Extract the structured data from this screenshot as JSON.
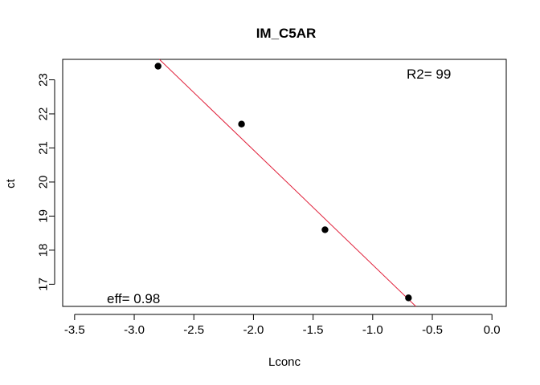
{
  "chart_data": {
    "type": "scatter",
    "title": "IM_C5AR",
    "xlabel": "Lconc",
    "ylabel": "ct",
    "xlim": [
      -3.6,
      0.12
    ],
    "ylim": [
      16.35,
      23.6
    ],
    "x_ticks": [
      -3.5,
      -3.0,
      -2.5,
      -2.0,
      -1.5,
      -1.0,
      -0.5,
      0.0
    ],
    "x_tick_labels": [
      "-3.5",
      "-3.0",
      "-2.5",
      "-2.0",
      "-1.5",
      "-1.0",
      "-0.5",
      "0.0"
    ],
    "y_ticks": [
      17,
      18,
      19,
      20,
      21,
      22,
      23
    ],
    "y_tick_labels": [
      "17",
      "18",
      "19",
      "20",
      "21",
      "22",
      "23"
    ],
    "points": {
      "x": [
        -2.8,
        -2.1,
        -1.4,
        -0.7
      ],
      "y": [
        23.4,
        21.7,
        18.6,
        16.6
      ]
    },
    "fit_line": {
      "slope": -3.37,
      "intercept": 14.2,
      "color": "#e0203a"
    },
    "point_color": "#000000",
    "grid": false,
    "annotations": {
      "r2": "R2= 99",
      "eff": "eff= 0.98"
    }
  }
}
